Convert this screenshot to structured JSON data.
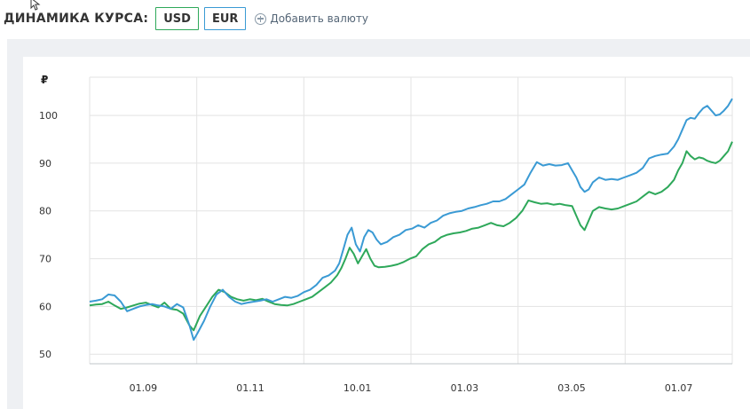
{
  "header": {
    "title": "ДИНАМИКА КУРСА:",
    "currencies": [
      {
        "label": "USD",
        "color": "#2ea85a"
      },
      {
        "label": "EUR",
        "color": "#3a9ad4"
      }
    ],
    "add_currency": "Добавить валюту"
  },
  "chart_data": {
    "type": "line",
    "unit_label": "₽",
    "y_ticks": [
      50,
      60,
      70,
      80,
      90,
      100
    ],
    "ylim": [
      48,
      108
    ],
    "x_tick_labels": [
      "01.09",
      "01.11",
      "10.01",
      "01.03",
      "03.05",
      "01.07"
    ],
    "grid": true,
    "legend": "none",
    "series": [
      {
        "name": "USD",
        "color": "#2ea85a",
        "points": [
          [
            0,
            60.2
          ],
          [
            3,
            60.4
          ],
          [
            6,
            60.5
          ],
          [
            9,
            61
          ],
          [
            12,
            60.2
          ],
          [
            15,
            59.5
          ],
          [
            18,
            59.8
          ],
          [
            21,
            60.2
          ],
          [
            24,
            60.6
          ],
          [
            27,
            60.8
          ],
          [
            30,
            60.3
          ],
          [
            33,
            59.8
          ],
          [
            36,
            60.8
          ],
          [
            39,
            59.5
          ],
          [
            42,
            59.3
          ],
          [
            45,
            58.5
          ],
          [
            48,
            56
          ],
          [
            50,
            55
          ],
          [
            53,
            58
          ],
          [
            56,
            60
          ],
          [
            59,
            62
          ],
          [
            62,
            63.5
          ],
          [
            65,
            63
          ],
          [
            68,
            62
          ],
          [
            71,
            61.5
          ],
          [
            74,
            61.2
          ],
          [
            77,
            61.5
          ],
          [
            80,
            61.3
          ],
          [
            83,
            61.6
          ],
          [
            86,
            61
          ],
          [
            89,
            60.5
          ],
          [
            92,
            60.3
          ],
          [
            95,
            60.2
          ],
          [
            98,
            60.5
          ],
          [
            101,
            61
          ],
          [
            104,
            61.5
          ],
          [
            107,
            62
          ],
          [
            110,
            63
          ],
          [
            113,
            64
          ],
          [
            116,
            65
          ],
          [
            119,
            66.5
          ],
          [
            121,
            68
          ],
          [
            123,
            70
          ],
          [
            125,
            72.3
          ],
          [
            127,
            71
          ],
          [
            129,
            69
          ],
          [
            131,
            70.5
          ],
          [
            133,
            72
          ],
          [
            135,
            70
          ],
          [
            137,
            68.5
          ],
          [
            139,
            68.2
          ],
          [
            142,
            68.3
          ],
          [
            145,
            68.5
          ],
          [
            148,
            68.8
          ],
          [
            151,
            69.3
          ],
          [
            154,
            70
          ],
          [
            157,
            70.5
          ],
          [
            160,
            72
          ],
          [
            163,
            73
          ],
          [
            166,
            73.5
          ],
          [
            169,
            74.5
          ],
          [
            172,
            75
          ],
          [
            175,
            75.3
          ],
          [
            178,
            75.5
          ],
          [
            181,
            75.8
          ],
          [
            184,
            76.3
          ],
          [
            187,
            76.5
          ],
          [
            190,
            77
          ],
          [
            193,
            77.5
          ],
          [
            196,
            77
          ],
          [
            199,
            76.8
          ],
          [
            202,
            77.5
          ],
          [
            205,
            78.5
          ],
          [
            208,
            80
          ],
          [
            211,
            82.2
          ],
          [
            214,
            81.8
          ],
          [
            217,
            81.5
          ],
          [
            220,
            81.6
          ],
          [
            223,
            81.3
          ],
          [
            226,
            81.5
          ],
          [
            229,
            81.2
          ],
          [
            232,
            81
          ],
          [
            234,
            79
          ],
          [
            236,
            77
          ],
          [
            238,
            76
          ],
          [
            240,
            78
          ],
          [
            242,
            80
          ],
          [
            245,
            80.8
          ],
          [
            248,
            80.5
          ],
          [
            251,
            80.3
          ],
          [
            254,
            80.5
          ],
          [
            257,
            81
          ],
          [
            260,
            81.5
          ],
          [
            263,
            82
          ],
          [
            266,
            83
          ],
          [
            269,
            84
          ],
          [
            272,
            83.5
          ],
          [
            275,
            84
          ],
          [
            278,
            85
          ],
          [
            281,
            86.5
          ],
          [
            283,
            88.5
          ],
          [
            285,
            90
          ],
          [
            287,
            92.5
          ],
          [
            289,
            91.5
          ],
          [
            291,
            90.8
          ],
          [
            293,
            91.2
          ],
          [
            295,
            91
          ],
          [
            297,
            90.5
          ],
          [
            299,
            90.2
          ],
          [
            301,
            90
          ],
          [
            303,
            90.5
          ],
          [
            305,
            91.5
          ],
          [
            307,
            92.5
          ],
          [
            309,
            94.5
          ]
        ]
      },
      {
        "name": "EUR",
        "color": "#3a9ad4",
        "points": [
          [
            0,
            61
          ],
          [
            3,
            61.2
          ],
          [
            6,
            61.5
          ],
          [
            9,
            62.5
          ],
          [
            12,
            62.3
          ],
          [
            15,
            61
          ],
          [
            18,
            59
          ],
          [
            21,
            59.5
          ],
          [
            24,
            60
          ],
          [
            27,
            60.3
          ],
          [
            30,
            60.5
          ],
          [
            33,
            60.2
          ],
          [
            36,
            60
          ],
          [
            39,
            59.5
          ],
          [
            42,
            60.5
          ],
          [
            45,
            59.8
          ],
          [
            48,
            56
          ],
          [
            50,
            53
          ],
          [
            52,
            54.5
          ],
          [
            55,
            57
          ],
          [
            58,
            60
          ],
          [
            61,
            62.5
          ],
          [
            64,
            63.5
          ],
          [
            67,
            62
          ],
          [
            70,
            61
          ],
          [
            73,
            60.5
          ],
          [
            76,
            60.8
          ],
          [
            79,
            61
          ],
          [
            82,
            61.2
          ],
          [
            85,
            61.5
          ],
          [
            88,
            61
          ],
          [
            91,
            61.5
          ],
          [
            94,
            62
          ],
          [
            97,
            61.8
          ],
          [
            100,
            62.2
          ],
          [
            103,
            63
          ],
          [
            106,
            63.5
          ],
          [
            109,
            64.5
          ],
          [
            112,
            66
          ],
          [
            115,
            66.5
          ],
          [
            118,
            67.5
          ],
          [
            120,
            69
          ],
          [
            122,
            72
          ],
          [
            124,
            75
          ],
          [
            126,
            76.5
          ],
          [
            128,
            73
          ],
          [
            130,
            71.5
          ],
          [
            132,
            74.5
          ],
          [
            134,
            76
          ],
          [
            136,
            75.5
          ],
          [
            138,
            74
          ],
          [
            140,
            73
          ],
          [
            143,
            73.5
          ],
          [
            146,
            74.5
          ],
          [
            149,
            75
          ],
          [
            152,
            76
          ],
          [
            155,
            76.3
          ],
          [
            158,
            77
          ],
          [
            161,
            76.5
          ],
          [
            164,
            77.5
          ],
          [
            167,
            78
          ],
          [
            170,
            79
          ],
          [
            173,
            79.5
          ],
          [
            176,
            79.8
          ],
          [
            179,
            80
          ],
          [
            182,
            80.5
          ],
          [
            185,
            80.8
          ],
          [
            188,
            81.2
          ],
          [
            191,
            81.5
          ],
          [
            194,
            82
          ],
          [
            197,
            82
          ],
          [
            200,
            82.5
          ],
          [
            203,
            83.5
          ],
          [
            206,
            84.5
          ],
          [
            209,
            85.5
          ],
          [
            212,
            88
          ],
          [
            215,
            90.2
          ],
          [
            218,
            89.5
          ],
          [
            221,
            89.8
          ],
          [
            224,
            89.5
          ],
          [
            227,
            89.6
          ],
          [
            230,
            90
          ],
          [
            232,
            88.5
          ],
          [
            234,
            87
          ],
          [
            236,
            85
          ],
          [
            238,
            84
          ],
          [
            240,
            84.5
          ],
          [
            242,
            86
          ],
          [
            245,
            87
          ],
          [
            248,
            86.5
          ],
          [
            251,
            86.7
          ],
          [
            254,
            86.5
          ],
          [
            257,
            87
          ],
          [
            260,
            87.5
          ],
          [
            263,
            88
          ],
          [
            266,
            89
          ],
          [
            269,
            91
          ],
          [
            272,
            91.5
          ],
          [
            275,
            91.8
          ],
          [
            278,
            92
          ],
          [
            281,
            93.5
          ],
          [
            283,
            95
          ],
          [
            285,
            97
          ],
          [
            287,
            99
          ],
          [
            289,
            99.5
          ],
          [
            291,
            99.3
          ],
          [
            293,
            100.5
          ],
          [
            295,
            101.5
          ],
          [
            297,
            102
          ],
          [
            299,
            101
          ],
          [
            301,
            100
          ],
          [
            303,
            100.2
          ],
          [
            305,
            101
          ],
          [
            307,
            102
          ],
          [
            309,
            103.5
          ]
        ]
      }
    ]
  }
}
